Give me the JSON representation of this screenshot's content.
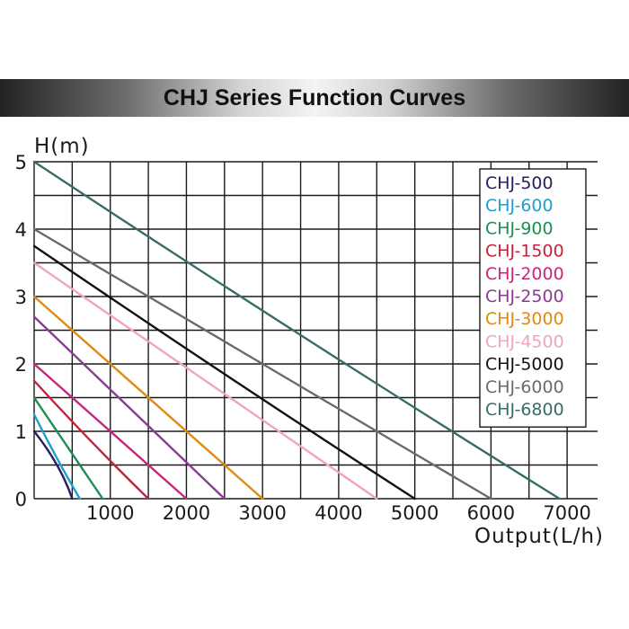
{
  "chart_data": {
    "type": "line",
    "title": "CHJ Series Function Curves",
    "ylabel": "H(m)",
    "xlabel": "Output(L/h)",
    "xlim": [
      0,
      7400
    ],
    "ylim": [
      0,
      5
    ],
    "x_ticks": [
      1000,
      2000,
      3000,
      4000,
      5000,
      6000,
      7000
    ],
    "x_tick_labels": [
      "1000",
      "2000",
      "3000",
      "4000",
      "5000",
      "6000",
      "7000"
    ],
    "y_ticks": [
      0,
      1,
      2,
      3,
      4,
      5
    ],
    "y_tick_labels": [
      "0",
      "1",
      "2",
      "3",
      "4",
      "5"
    ],
    "grid": true,
    "legend_position": "top-right",
    "series": [
      {
        "name": "CHJ-500",
        "color": "#232060",
        "x": [
          0,
          300,
          500
        ],
        "y": [
          1.0,
          0.5,
          0
        ]
      },
      {
        "name": "CHJ-600",
        "color": "#1e9fd0",
        "x": [
          0,
          300,
          600
        ],
        "y": [
          1.25,
          0.6,
          0
        ]
      },
      {
        "name": "CHJ-900",
        "color": "#1a8f52",
        "x": [
          0,
          450,
          900
        ],
        "y": [
          1.5,
          0.75,
          0
        ]
      },
      {
        "name": "CHJ-1500",
        "color": "#c4213a",
        "x": [
          0,
          750,
          1500
        ],
        "y": [
          1.75,
          0.85,
          0
        ]
      },
      {
        "name": "CHJ-2000",
        "color": "#c8267d",
        "x": [
          0,
          1000,
          2000
        ],
        "y": [
          2.0,
          1.0,
          0
        ]
      },
      {
        "name": "CHJ-2500",
        "color": "#8a3b93",
        "x": [
          0,
          1250,
          2500
        ],
        "y": [
          2.7,
          1.35,
          0
        ]
      },
      {
        "name": "CHJ-3000",
        "color": "#e08a10",
        "x": [
          0,
          1500,
          3000
        ],
        "y": [
          3.0,
          1.5,
          0
        ]
      },
      {
        "name": "CHJ-4500",
        "color": "#f0a6b8",
        "x": [
          0,
          2250,
          4500
        ],
        "y": [
          3.5,
          1.75,
          0
        ]
      },
      {
        "name": "CHJ-5000",
        "color": "#111111",
        "x": [
          0,
          2500,
          5000
        ],
        "y": [
          3.75,
          1.85,
          0
        ]
      },
      {
        "name": "CHJ-6000",
        "color": "#6e6a6c",
        "x": [
          0,
          3000,
          6000
        ],
        "y": [
          4.0,
          2.0,
          0
        ]
      },
      {
        "name": "CHJ-6800",
        "color": "#356e68",
        "x": [
          0,
          3400,
          6900
        ],
        "y": [
          5.0,
          2.5,
          0
        ]
      }
    ]
  }
}
